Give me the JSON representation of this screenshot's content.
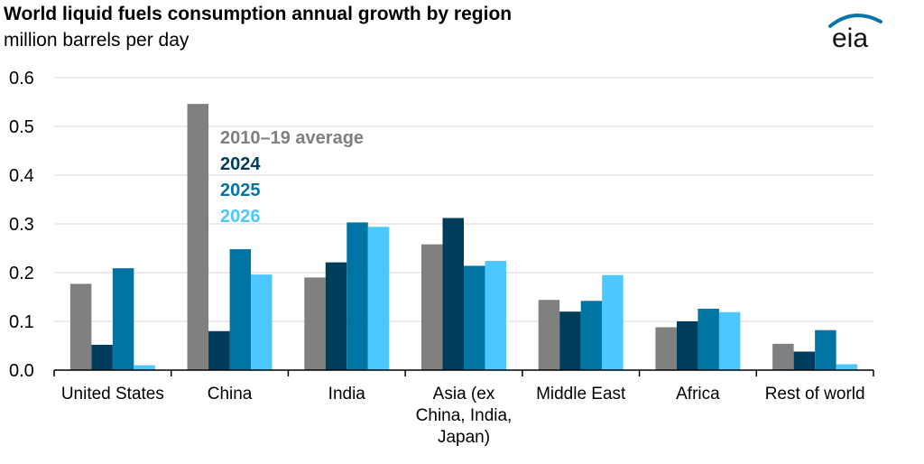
{
  "header": {
    "title": "World liquid fuels consumption annual growth by region",
    "subtitle": "million barrels per day",
    "logo_text": "eia"
  },
  "colors": {
    "logo": "#0a76a6",
    "axis": "#000000",
    "grid": "#d9d9d9"
  },
  "chart_data": {
    "type": "bar",
    "title": "World liquid fuels consumption annual growth by region",
    "subtitle": "million barrels per day",
    "ylabel": "",
    "xlabel": "",
    "ylim": [
      0,
      0.6
    ],
    "yticks": [
      "0.0",
      "0.1",
      "0.2",
      "0.3",
      "0.4",
      "0.5",
      "0.6"
    ],
    "ytick_values": [
      0,
      0.1,
      0.2,
      0.3,
      0.4,
      0.5,
      0.6
    ],
    "grid": true,
    "legend_position": "inside-top-left",
    "categories": [
      [
        "United States"
      ],
      [
        "China"
      ],
      [
        "India"
      ],
      [
        "Asia (ex",
        "China, India,",
        "Japan)"
      ],
      [
        "Middle East"
      ],
      [
        "Africa"
      ],
      [
        "Rest of world"
      ]
    ],
    "series": [
      {
        "name": "2010–19 average",
        "color": "#808080",
        "values": [
          0.177,
          0.546,
          0.19,
          0.258,
          0.144,
          0.088,
          0.054
        ]
      },
      {
        "name": "2024",
        "color": "#003c5c",
        "values": [
          0.052,
          0.08,
          0.221,
          0.312,
          0.12,
          0.1,
          0.038
        ]
      },
      {
        "name": "2025",
        "color": "#0074a3",
        "values": [
          0.209,
          0.248,
          0.303,
          0.214,
          0.142,
          0.126,
          0.082
        ]
      },
      {
        "name": "2026",
        "color": "#4dc7ff",
        "values": [
          0.01,
          0.196,
          0.294,
          0.224,
          0.195,
          0.119,
          0.012
        ]
      }
    ]
  }
}
